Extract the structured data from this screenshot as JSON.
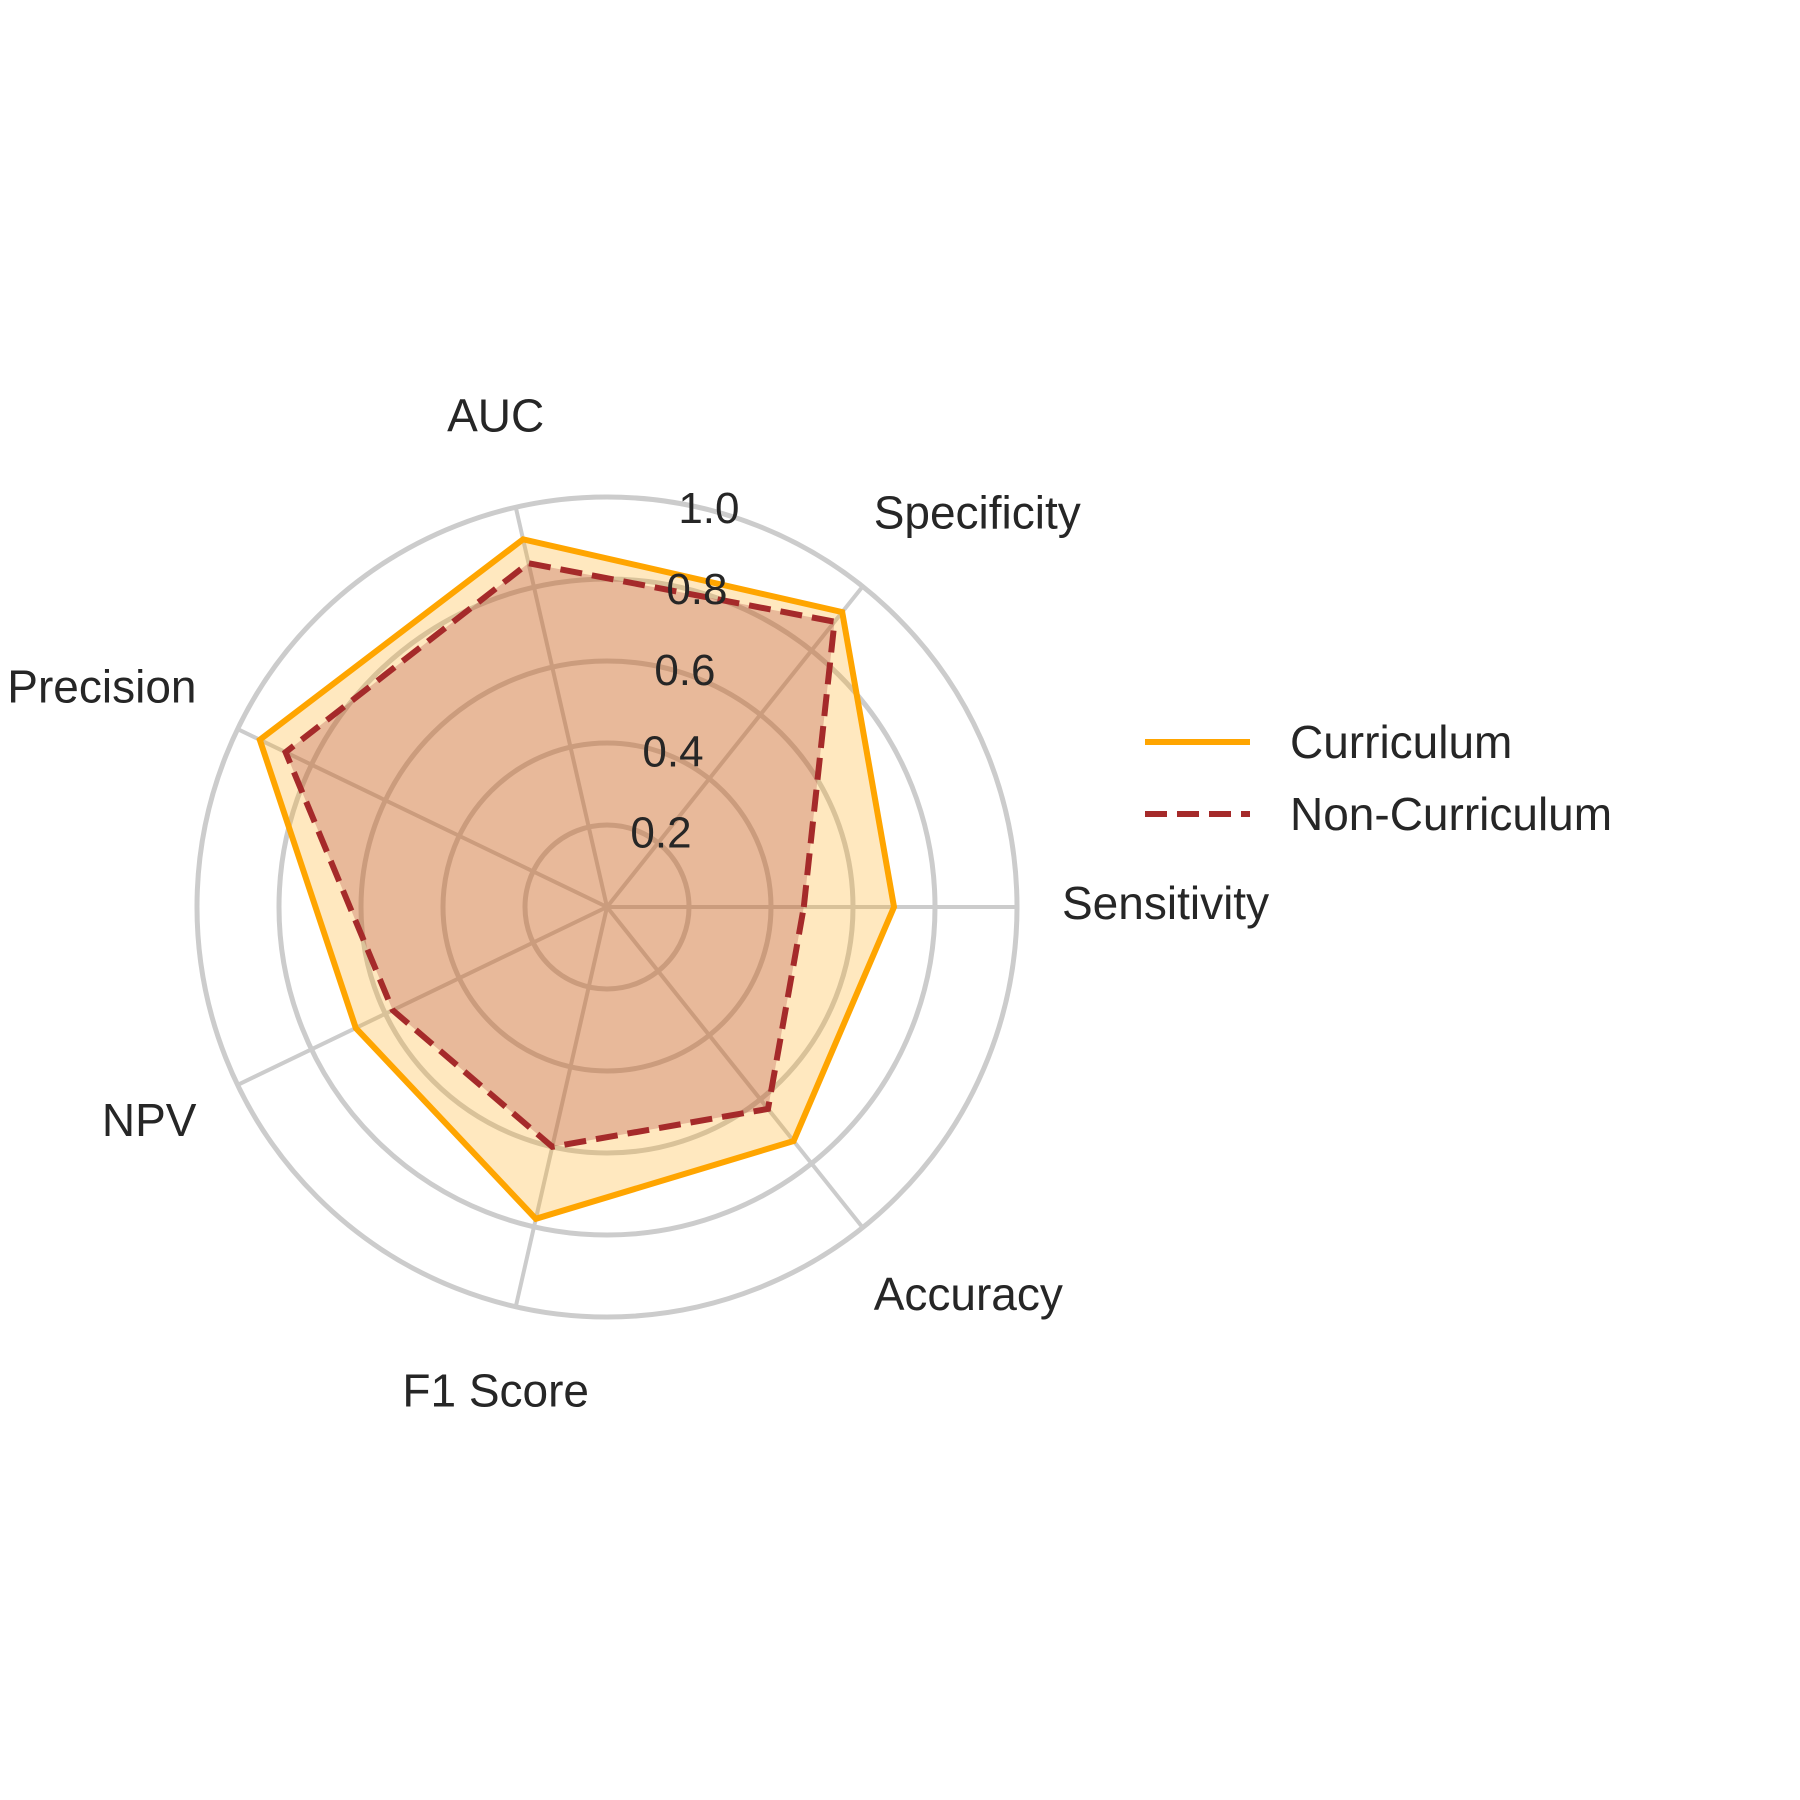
{
  "chart_data": {
    "type": "radar",
    "axes": [
      "Sensitivity",
      "Specificity",
      "AUC",
      "Precision",
      "NPV",
      "F1 Score",
      "Accuracy"
    ],
    "rlim": [
      0,
      1.0
    ],
    "r_ticks": [
      "0.2",
      "0.4",
      "0.6",
      "0.8",
      "1.0"
    ],
    "r_tick_values": [
      0.2,
      0.4,
      0.6,
      0.8,
      1.0
    ],
    "grid": true,
    "legend_position": "right",
    "series": [
      {
        "name": "Curriculum",
        "values": [
          0.7,
          0.92,
          0.92,
          0.94,
          0.68,
          0.78,
          0.73
        ],
        "color": "#FFA500",
        "line_style": "solid",
        "fill_color": "#FFA500"
      },
      {
        "name": "Non-Curriculum",
        "values": [
          0.48,
          0.89,
          0.86,
          0.87,
          0.58,
          0.6,
          0.63
        ],
        "color": "#A52A2A",
        "line_style": "dashed",
        "fill_color": "#A52A2A"
      }
    ]
  }
}
